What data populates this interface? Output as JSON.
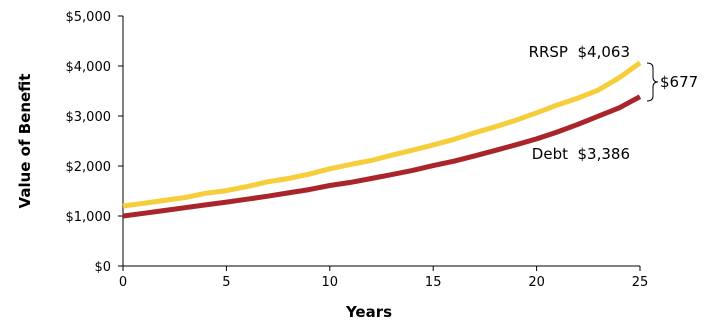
{
  "chart_data": {
    "type": "line",
    "xlabel": "Years",
    "ylabel": "Value of Benefit",
    "xlim": [
      0,
      25
    ],
    "ylim": [
      0,
      5000
    ],
    "x_ticks": [
      0,
      5,
      10,
      15,
      20,
      25
    ],
    "x_tick_labels": [
      "0",
      "5",
      "10",
      "15",
      "20",
      "25"
    ],
    "y_ticks": [
      0,
      1000,
      2000,
      3000,
      4000,
      5000
    ],
    "y_tick_labels": [
      "$0",
      "$1,000",
      "$2,000",
      "$3,000",
      "$4,000",
      "$5,000"
    ],
    "grid": false,
    "x": [
      0,
      1,
      2,
      3,
      4,
      5,
      6,
      7,
      8,
      9,
      10,
      11,
      12,
      13,
      14,
      15,
      16,
      17,
      18,
      19,
      20,
      21,
      22,
      23,
      24,
      25
    ],
    "series": [
      {
        "key": "rrsp",
        "color": "#F6CD3A",
        "values": [
          1200,
          1254,
          1311,
          1370,
          1455,
          1508,
          1587,
          1683,
          1750,
          1837,
          1944,
          2032,
          2110,
          2216,
          2317,
          2422,
          2531,
          2664,
          2784,
          2916,
          3064,
          3219,
          3359,
          3521,
          3767,
          4063
        ]
      },
      {
        "key": "debt",
        "color": "#A9252B",
        "values": [
          1000,
          1054,
          1110,
          1166,
          1221,
          1278,
          1336,
          1397,
          1462,
          1529,
          1610,
          1672,
          1750,
          1829,
          1911,
          2008,
          2096,
          2202,
          2311,
          2424,
          2542,
          2679,
          2833,
          2998,
          3164,
          3386
        ]
      }
    ],
    "annotations": {
      "rrsp_label": "RRSP  $4,063",
      "debt_label": "Debt  $3,386",
      "difference_label": "$677"
    }
  }
}
